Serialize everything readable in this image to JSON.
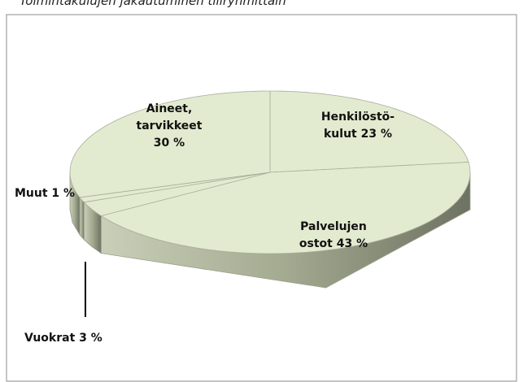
{
  "chart_data": {
    "type": "pie",
    "title": "Toimintakulujen jakautuminen tiliryhmittäin",
    "values": [
      23,
      43,
      3,
      1,
      30
    ],
    "value_labels": [
      [
        "Henkilöstö-",
        "kulut 23 %"
      ],
      [
        "Palvelujen",
        "ostot 43 %"
      ],
      [
        "Vuokrat 3 %"
      ],
      [
        "Muut 1 %"
      ],
      [
        "Aineet,",
        "tarvikkeet",
        "30 %"
      ]
    ],
    "color": "#e2ebcf"
  }
}
